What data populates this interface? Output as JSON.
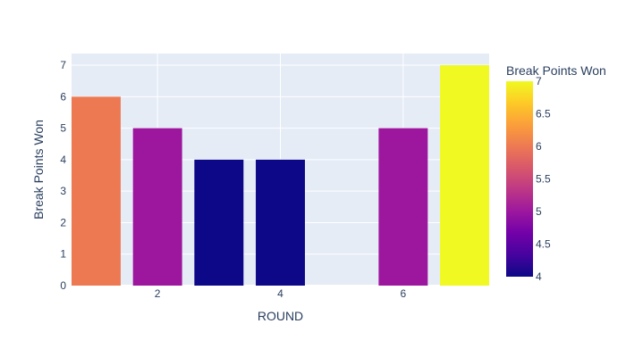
{
  "chart_data": {
    "type": "bar",
    "x": [
      1,
      2,
      3,
      4,
      6,
      7
    ],
    "values": [
      6,
      5,
      4,
      4,
      5,
      7
    ],
    "xlabel": "ROUND",
    "ylabel": "Break Points Won",
    "xlim": [
      0.6,
      7.4
    ],
    "ylim": [
      0,
      7.37
    ],
    "x_ticks": [
      2,
      4,
      6
    ],
    "y_ticks": [
      0,
      1,
      2,
      3,
      4,
      5,
      6,
      7
    ],
    "colorbar": {
      "title": "Break Points Won",
      "range": [
        4,
        7
      ],
      "ticks": [
        "4",
        "4.5",
        "5",
        "5.5",
        "6",
        "6.5",
        "7"
      ],
      "tick_values": [
        4,
        4.5,
        5,
        5.5,
        6,
        6.5,
        7
      ],
      "colorscale": [
        "#0d0887",
        "#46039f",
        "#7201a8",
        "#9c179e",
        "#bd3786",
        "#d8576b",
        "#ed7953",
        "#fb9f3a",
        "#fdca26",
        "#f0f921"
      ]
    },
    "grid": true,
    "plot_background": "#e5ecf6"
  }
}
